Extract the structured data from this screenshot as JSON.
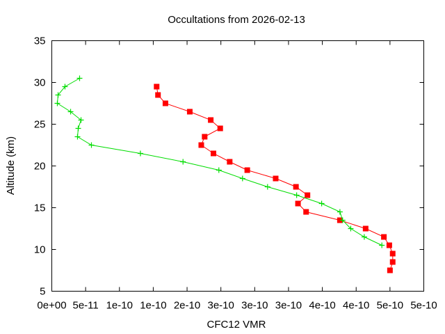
{
  "chart_data": {
    "type": "line",
    "title": "Occultations from 2026-02-13",
    "xlabel": "CFC12 VMR",
    "ylabel": "Altitude (km)",
    "xlim": [
      0,
      5.5e-10
    ],
    "ylim": [
      5,
      35
    ],
    "grid": false,
    "legend": null,
    "x_tick_values": [
      0,
      5e-11,
      1e-10,
      1.5e-10,
      2e-10,
      2.5e-10,
      3e-10,
      3.5e-10,
      4e-10,
      4.5e-10,
      5e-10,
      5.5e-10
    ],
    "x_tick_labels": [
      "0e+00",
      "5e-11",
      "1e-10",
      "1e-10",
      "2e-10",
      "3e-10",
      "3e-10",
      "3e-10",
      "4e-10",
      "4e-10",
      "5e-10",
      "5e-10"
    ],
    "y_tick_values": [
      5,
      10,
      15,
      20,
      25,
      30,
      35
    ],
    "y_tick_labels": [
      "5",
      "10",
      "15",
      "20",
      "25",
      "30",
      "35"
    ],
    "series": [
      {
        "name": "occultation-1",
        "color": "#ff0000",
        "marker": "filled-square",
        "points": [
          [
            1.55e-10,
            29.5
          ],
          [
            1.57e-10,
            28.5
          ],
          [
            1.68e-10,
            27.5
          ],
          [
            2.04e-10,
            26.5
          ],
          [
            2.35e-10,
            25.5
          ],
          [
            2.49e-10,
            24.5
          ],
          [
            2.26e-10,
            23.5
          ],
          [
            2.21e-10,
            22.5
          ],
          [
            2.39e-10,
            21.5
          ],
          [
            2.63e-10,
            20.5
          ],
          [
            2.89e-10,
            19.5
          ],
          [
            3.31e-10,
            18.5
          ],
          [
            3.61e-10,
            17.5
          ],
          [
            3.78e-10,
            16.5
          ],
          [
            3.64e-10,
            15.5
          ],
          [
            3.76e-10,
            14.5
          ],
          [
            4.26e-10,
            13.5
          ],
          [
            4.64e-10,
            12.5
          ],
          [
            4.91e-10,
            11.5
          ],
          [
            4.99e-10,
            10.5
          ],
          [
            5.04e-10,
            9.5
          ],
          [
            5.04e-10,
            8.5
          ],
          [
            5e-10,
            7.5
          ]
        ]
      },
      {
        "name": "occultation-2",
        "color": "#00dd00",
        "marker": "plus",
        "points": [
          [
            4.11e-11,
            30.5
          ],
          [
            1.95e-11,
            29.5
          ],
          [
            9.3e-12,
            28.5
          ],
          [
            8.2e-12,
            27.5
          ],
          [
            2.78e-11,
            26.5
          ],
          [
            4.32e-11,
            25.5
          ],
          [
            3.91e-11,
            24.5
          ],
          [
            3.8e-11,
            23.5
          ],
          [
            5.86e-11,
            22.5
          ],
          [
            1.31e-10,
            21.5
          ],
          [
            1.94e-10,
            20.5
          ],
          [
            2.47e-10,
            19.5
          ],
          [
            2.82e-10,
            18.5
          ],
          [
            3.19e-10,
            17.5
          ],
          [
            3.62e-10,
            16.5
          ],
          [
            3.99e-10,
            15.5
          ],
          [
            4.26e-10,
            14.5
          ],
          [
            4.3e-10,
            13.5
          ],
          [
            4.42e-10,
            12.5
          ],
          [
            4.62e-10,
            11.5
          ],
          [
            4.88e-10,
            10.5
          ]
        ]
      }
    ]
  }
}
